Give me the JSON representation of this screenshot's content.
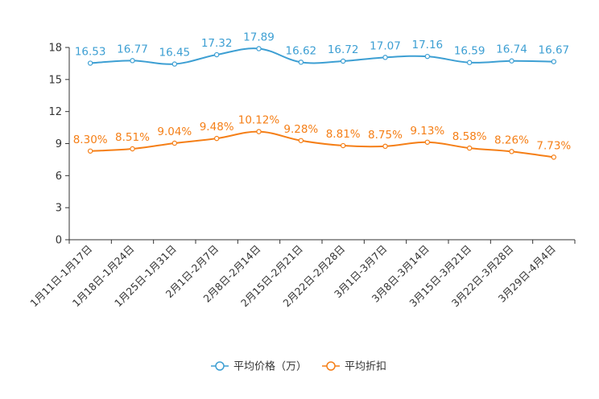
{
  "chart_data": {
    "type": "line",
    "title": "",
    "xlabel": "",
    "ylabel": "",
    "ylim": [
      0,
      18
    ],
    "yticks": [
      0,
      3,
      6,
      9,
      12,
      15,
      18
    ],
    "grid": false,
    "legend_position": "bottom",
    "categories": [
      "1月11日-1月17日",
      "1月18日-1月24日",
      "1月25日-1月31日",
      "2月1日-2月7日",
      "2月8日-2月14日",
      "2月15日-2月21日",
      "2月22日-2月28日",
      "3月1日-3月7日",
      "3月8日-3月14日",
      "3月15日-3月21日",
      "3月22日-3月28日",
      "3月29日-4月4日"
    ],
    "series": [
      {
        "name": "平均价格（万）",
        "color": "#3d9fd3",
        "values": [
          16.53,
          16.77,
          16.45,
          17.32,
          17.89,
          16.62,
          16.72,
          17.07,
          17.16,
          16.59,
          16.74,
          16.67
        ],
        "labels": [
          "16.53",
          "16.77",
          "16.45",
          "17.32",
          "17.89",
          "16.62",
          "16.72",
          "17.07",
          "17.16",
          "16.59",
          "16.74",
          "16.67"
        ]
      },
      {
        "name": "平均折扣",
        "color": "#f57f17",
        "values": [
          8.3,
          8.51,
          9.04,
          9.48,
          10.12,
          9.28,
          8.81,
          8.75,
          9.13,
          8.58,
          8.26,
          7.73
        ],
        "labels": [
          "8.30%",
          "8.51%",
          "9.04%",
          "9.48%",
          "10.12%",
          "9.28%",
          "8.81%",
          "8.75%",
          "9.13%",
          "8.58%",
          "8.26%",
          "7.73%"
        ]
      }
    ]
  }
}
